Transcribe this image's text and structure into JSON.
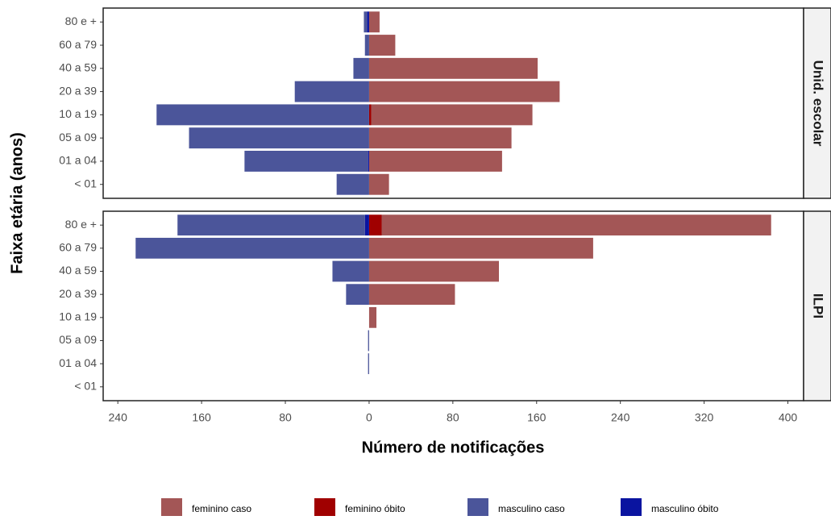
{
  "chart_data": {
    "type": "pyramid",
    "xlabel": "Número de notificações",
    "ylabel": "Faixa etária (anos)",
    "facets": [
      "Unid. escolar",
      "ILPI"
    ],
    "categories": [
      "< 01",
      "01 a 04",
      "05 a 09",
      "10 a 19",
      "20 a 39",
      "40 a 59",
      "60 a 79",
      "80 e +"
    ],
    "xlim": [
      -254,
      415
    ],
    "xticks": [
      {
        "value": -240,
        "label": "240"
      },
      {
        "value": -160,
        "label": "160"
      },
      {
        "value": -80,
        "label": "80"
      },
      0,
      80,
      160,
      240,
      320,
      400
    ],
    "series": [
      {
        "name": "feminino caso",
        "color": "#a35656",
        "values": [
          [
            19,
            127,
            136,
            154,
            182,
            161,
            25,
            10
          ],
          [
            0,
            0,
            0,
            7,
            82,
            124,
            214,
            372
          ]
        ]
      },
      {
        "name": "feminino óbito",
        "color": "#a00000",
        "values": [
          [
            0,
            0,
            0,
            2,
            0,
            0,
            0,
            0
          ],
          [
            0,
            0,
            0,
            0,
            0,
            0,
            0,
            12
          ]
        ]
      },
      {
        "name": "masculino caso",
        "color": "#4b559a",
        "values": [
          [
            -31,
            -118,
            -172,
            -203,
            -71,
            -15,
            -4,
            -3
          ],
          [
            0,
            -1,
            -1,
            0,
            -22,
            -35,
            -223,
            -179
          ]
        ]
      },
      {
        "name": "masculino óbito",
        "color": "#0a14a0",
        "values": [
          [
            0,
            -1,
            0,
            0,
            0,
            0,
            0,
            -2
          ],
          [
            0,
            0,
            0,
            0,
            0,
            0,
            0,
            -4
          ]
        ]
      }
    ]
  }
}
